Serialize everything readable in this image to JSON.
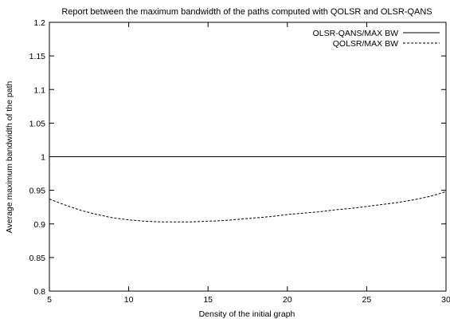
{
  "chart_data": {
    "type": "line",
    "title": "Report between the maximum  bandwidth of the paths computed with QOLSR and OLSR-QANS",
    "xlabel": "Density of the initial graph",
    "ylabel": "Average maximum bandwidth of the path",
    "xlim": [
      5,
      30
    ],
    "ylim": [
      0.8,
      1.2
    ],
    "xticks": [
      5,
      10,
      15,
      20,
      25,
      30
    ],
    "yticks": [
      0.8,
      0.85,
      0.9,
      0.95,
      1,
      1.05,
      1.1,
      1.15,
      1.2
    ],
    "xtick_labels": [
      "5",
      "10",
      "15",
      "20",
      "25",
      "30"
    ],
    "ytick_labels": [
      "0.8",
      "0.85",
      "0.9",
      "0.95",
      "1",
      "1.05",
      "1.1",
      "1.15",
      "1.2"
    ],
    "grid": false,
    "legend_position": "top-right",
    "series": [
      {
        "name": "OLSR-QANS/MAX BW",
        "style": "solid",
        "x": [
          5,
          10,
          15,
          20,
          25,
          30
        ],
        "y": [
          1,
          1,
          1,
          1,
          1,
          1
        ]
      },
      {
        "name": "QOLSR/MAX BW",
        "style": "dashed",
        "x": [
          5,
          6,
          7,
          8,
          9,
          10,
          11,
          12,
          13,
          14,
          15,
          16,
          17,
          18,
          19,
          20,
          21,
          22,
          23,
          24,
          25,
          26,
          27,
          28,
          29,
          30
        ],
        "y": [
          0.937,
          0.928,
          0.92,
          0.914,
          0.909,
          0.906,
          0.904,
          0.903,
          0.903,
          0.903,
          0.904,
          0.905,
          0.907,
          0.909,
          0.911,
          0.914,
          0.916,
          0.918,
          0.921,
          0.923,
          0.926,
          0.929,
          0.932,
          0.936,
          0.941,
          0.948
        ]
      }
    ]
  }
}
